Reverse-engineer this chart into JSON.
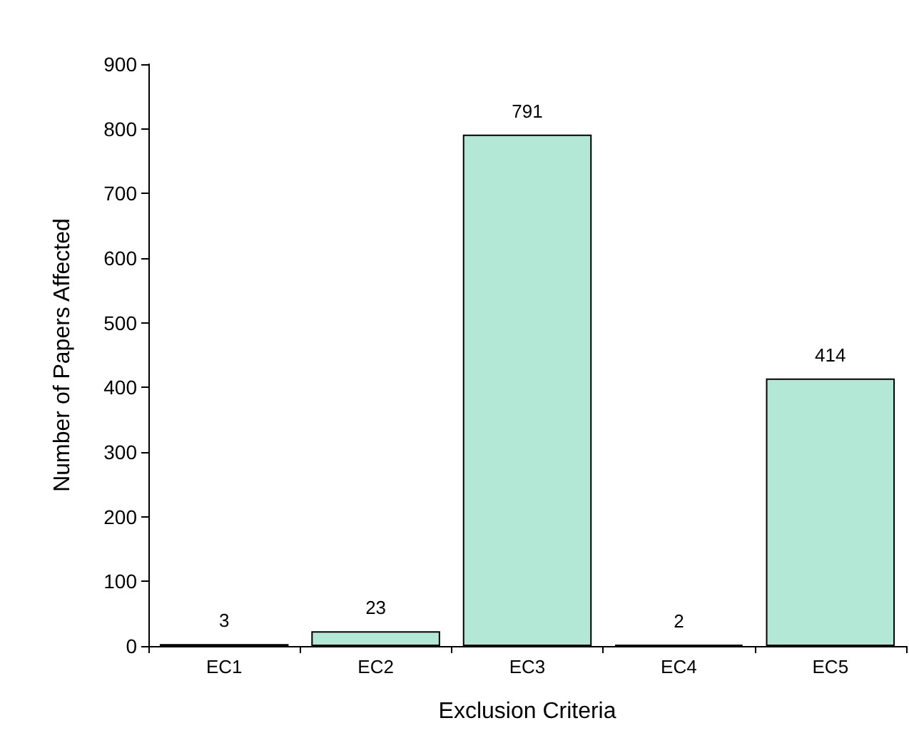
{
  "chart_data": {
    "type": "bar",
    "xlabel": "Exclusion Criteria",
    "ylabel": "Number of Papers Affected",
    "categories": [
      "EC1",
      "EC2",
      "EC3",
      "EC4",
      "EC5"
    ],
    "values": [
      3,
      23,
      791,
      2,
      414
    ],
    "color": "#b3e8d6",
    "ylim": [
      0,
      900
    ],
    "yticks": [
      0,
      100,
      200,
      300,
      400,
      500,
      600,
      700,
      800,
      900
    ],
    "grid": false,
    "data_labels": true
  }
}
